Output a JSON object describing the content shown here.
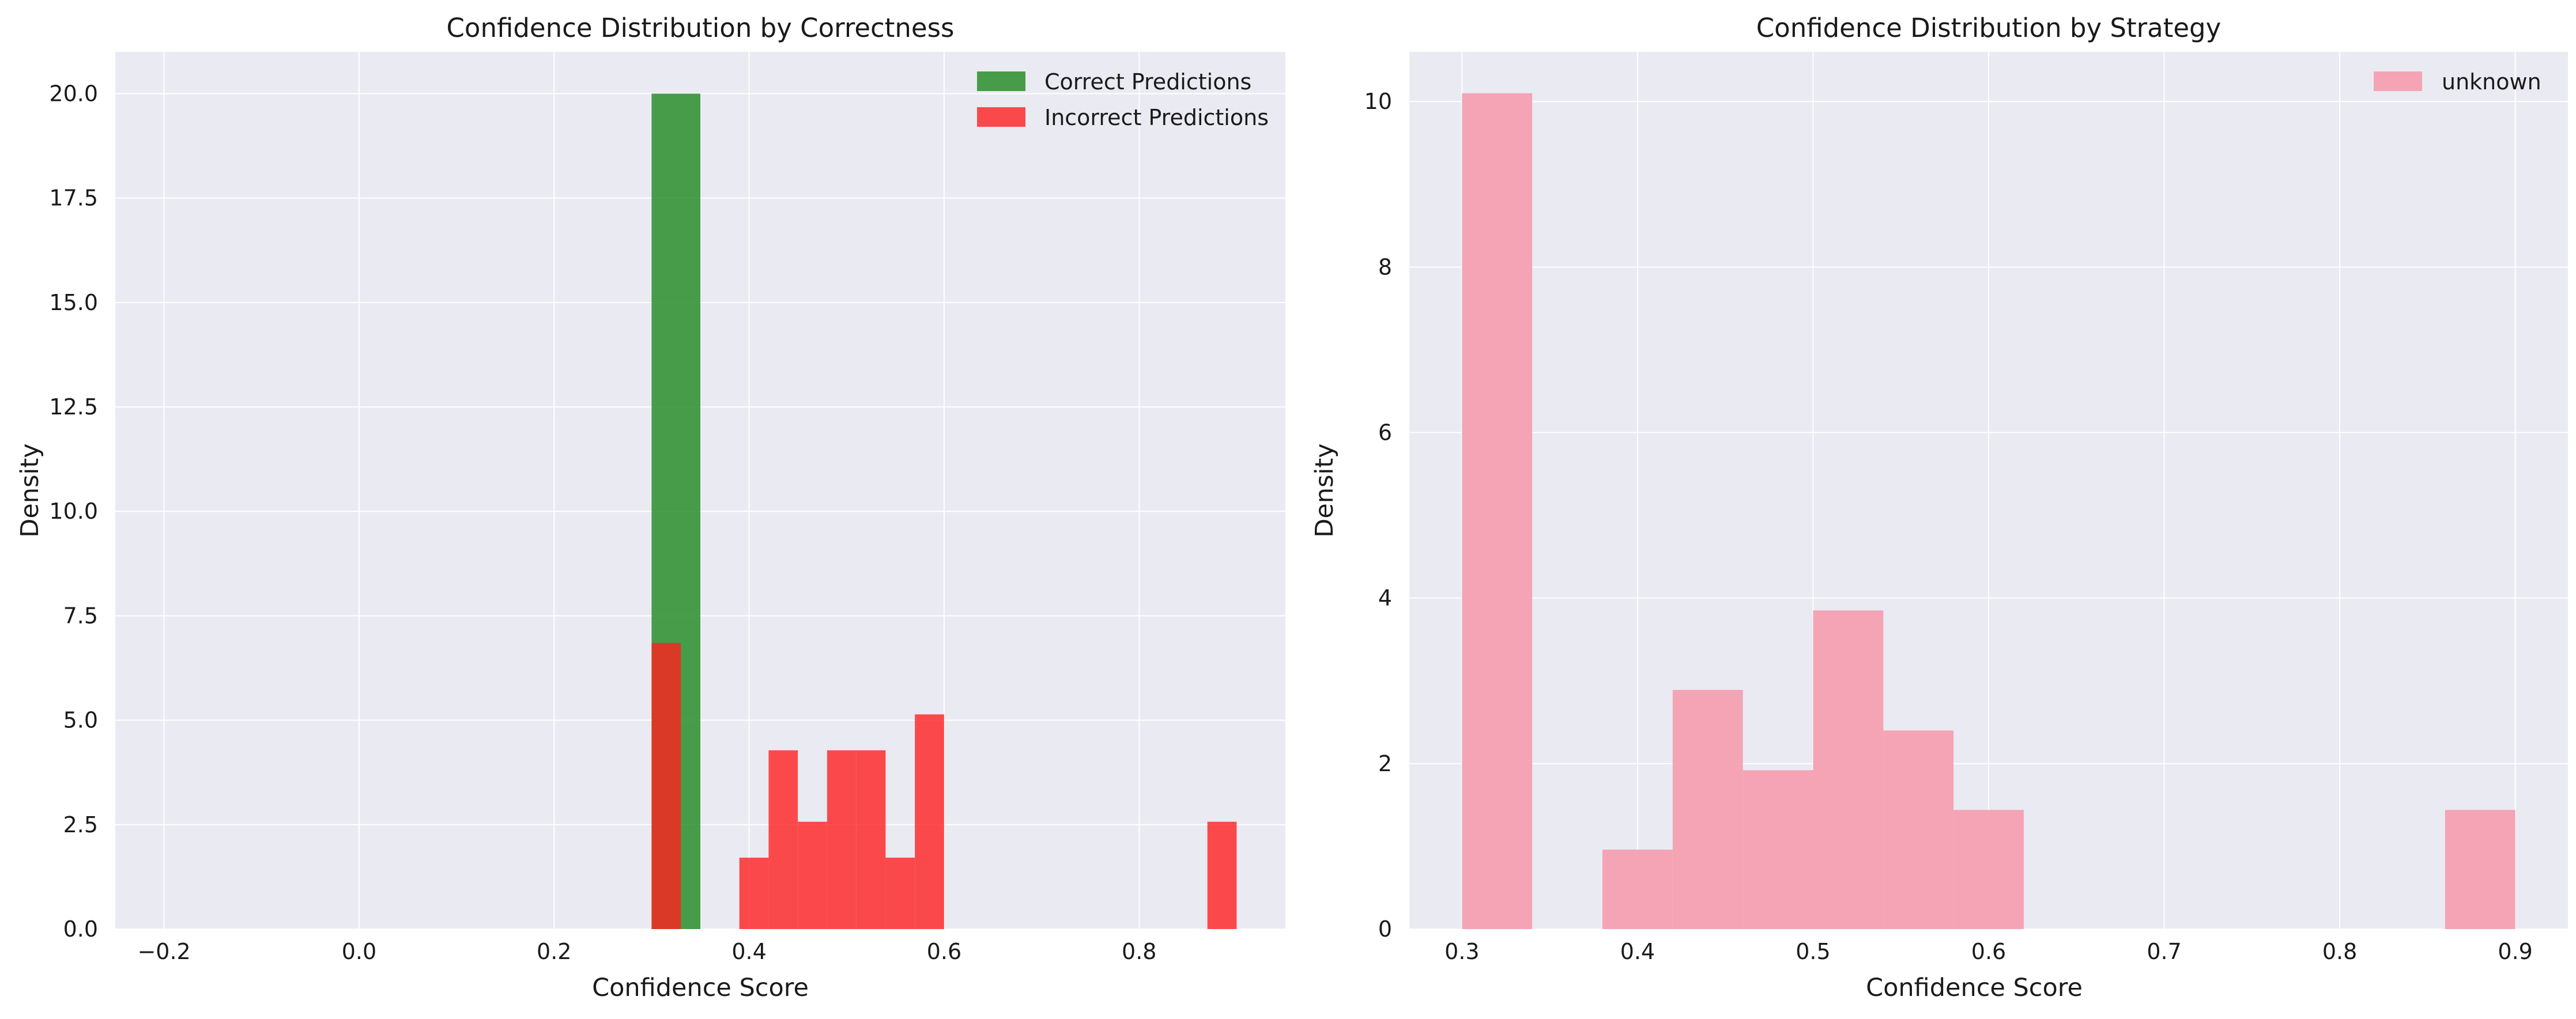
{
  "figure": {
    "background": "#ffffff",
    "axes_facecolor": "#eaeaf2",
    "grid_color": "#ffffff"
  },
  "chart_data": [
    {
      "type": "bar",
      "subtype": "histogram",
      "title": "Confidence Distribution by Correctness",
      "xlabel": "Confidence Score",
      "ylabel": "Density",
      "xlim": [
        -0.25,
        0.95
      ],
      "ylim": [
        0,
        21
      ],
      "xticks": [
        -0.2,
        0.0,
        0.2,
        0.4,
        0.6,
        0.8
      ],
      "xtick_labels": [
        "−0.2",
        "0.0",
        "0.2",
        "0.4",
        "0.6",
        "0.8"
      ],
      "yticks": [
        0,
        2.5,
        5,
        7.5,
        10,
        12.5,
        15,
        17.5,
        20
      ],
      "ytick_labels": [
        "0.0",
        "2.5",
        "5.0",
        "7.5",
        "10.0",
        "12.5",
        "15.0",
        "17.5",
        "20.0"
      ],
      "grid": true,
      "legend": "top-right",
      "series": [
        {
          "name": "Correct Predictions",
          "color": "#228b22",
          "opacity": 0.82,
          "bins": [
            {
              "x0": 0.3,
              "x1": 0.35,
              "value": 20.0
            }
          ]
        },
        {
          "name": "Incorrect Predictions",
          "color": "#ff2020",
          "opacity": 0.8,
          "bins": [
            {
              "x0": 0.3,
              "x1": 0.33,
              "value": 6.85
            },
            {
              "x0": 0.39,
              "x1": 0.42,
              "value": 1.71
            },
            {
              "x0": 0.42,
              "x1": 0.45,
              "value": 4.28
            },
            {
              "x0": 0.45,
              "x1": 0.48,
              "value": 2.57
            },
            {
              "x0": 0.48,
              "x1": 0.51,
              "value": 4.28
            },
            {
              "x0": 0.51,
              "x1": 0.54,
              "value": 4.28
            },
            {
              "x0": 0.54,
              "x1": 0.57,
              "value": 1.71
            },
            {
              "x0": 0.57,
              "x1": 0.6,
              "value": 5.14
            },
            {
              "x0": 0.87,
              "x1": 0.9,
              "value": 2.57
            }
          ]
        }
      ]
    },
    {
      "type": "bar",
      "subtype": "histogram",
      "title": "Confidence Distribution by Strategy",
      "xlabel": "Confidence Score",
      "ylabel": "Density",
      "xlim": [
        0.27,
        0.93
      ],
      "ylim": [
        0,
        10.6
      ],
      "xticks": [
        0.3,
        0.4,
        0.5,
        0.6,
        0.7,
        0.8,
        0.9
      ],
      "xtick_labels": [
        "0.3",
        "0.4",
        "0.5",
        "0.6",
        "0.7",
        "0.8",
        "0.9"
      ],
      "yticks": [
        0,
        2,
        4,
        6,
        8,
        10
      ],
      "ytick_labels": [
        "0",
        "2",
        "4",
        "6",
        "8",
        "10"
      ],
      "grid": true,
      "legend": "top-right",
      "series": [
        {
          "name": "unknown",
          "color": "#f4a0b1",
          "opacity": 0.95,
          "bins": [
            {
              "x0": 0.3,
              "x1": 0.34,
              "value": 10.1
            },
            {
              "x0": 0.38,
              "x1": 0.42,
              "value": 0.96
            },
            {
              "x0": 0.42,
              "x1": 0.46,
              "value": 2.89
            },
            {
              "x0": 0.46,
              "x1": 0.5,
              "value": 1.92
            },
            {
              "x0": 0.5,
              "x1": 0.54,
              "value": 3.85
            },
            {
              "x0": 0.54,
              "x1": 0.58,
              "value": 2.4
            },
            {
              "x0": 0.58,
              "x1": 0.62,
              "value": 1.44
            },
            {
              "x0": 0.86,
              "x1": 0.9,
              "value": 1.44
            }
          ]
        }
      ]
    }
  ]
}
